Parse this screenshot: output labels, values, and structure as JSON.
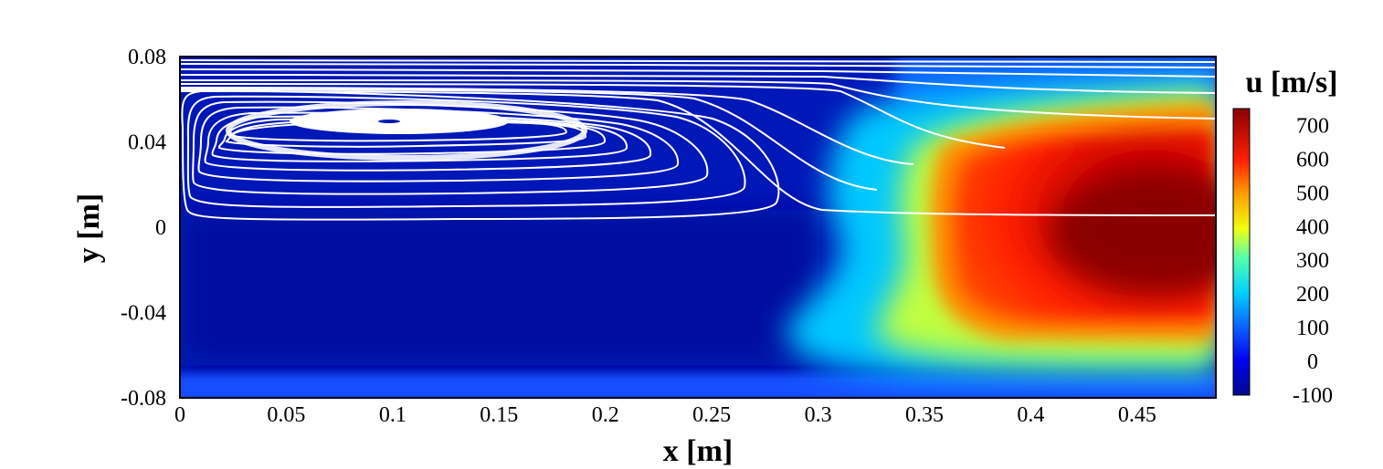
{
  "chart_data": {
    "type": "heatmap",
    "title": "",
    "xlabel": "x [m]",
    "ylabel": "y [m]",
    "xlim": [
      0,
      0.487
    ],
    "ylim": [
      -0.08,
      0.08
    ],
    "xticks": [
      "0",
      "0.05",
      "0.1",
      "0.15",
      "0.2",
      "0.25",
      "0.3",
      "0.35",
      "0.4",
      "0.45"
    ],
    "yticks": [
      "0.08",
      "0.04",
      "0",
      "-0.04",
      "-0.08"
    ],
    "colorbar": {
      "label": "u [m/s]",
      "range": [
        -100,
        750
      ],
      "ticks": [
        "700",
        "600",
        "500",
        "400",
        "300",
        "200",
        "100",
        "0",
        "-100"
      ],
      "colormap": "jet"
    },
    "field": {
      "quantity": "u",
      "units": "m/s",
      "regions": [
        {
          "name": "recirculation",
          "x": [
            0,
            0.3
          ],
          "y": [
            -0.08,
            0.08
          ],
          "u": 0
        },
        {
          "name": "core jet",
          "x": [
            0.38,
            0.487
          ],
          "y": [
            -0.03,
            0.03
          ],
          "u": 730
        },
        {
          "name": "jet shear layer",
          "x": [
            0.33,
            0.487
          ],
          "y": [
            -0.06,
            0.07
          ],
          "u": 400
        },
        {
          "name": "bottom wall layer",
          "x": [
            0,
            0.487
          ],
          "y": [
            -0.08,
            -0.068
          ],
          "u": 120
        }
      ]
    },
    "streamlines": {
      "color": "#ffffff",
      "vortex_center": {
        "x": 0.098,
        "y": 0.05
      }
    },
    "grid": false,
    "legend": "colorbar right"
  }
}
